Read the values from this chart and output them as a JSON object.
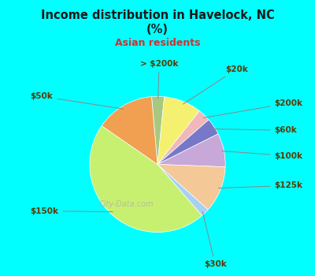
{
  "title_line1": "Income distribution in Havelock, NC",
  "title_line2": "(%)",
  "subtitle": "Asian residents",
  "background_color": "#00FFFF",
  "chart_bg_color": "#dff0e8",
  "labels": [
    "> $200k",
    "$20k",
    "$200k",
    "$60k",
    "$100k",
    "$125k",
    "$30k",
    "$150k",
    "$50k"
  ],
  "values": [
    3,
    9,
    3,
    4,
    8,
    11,
    2,
    46,
    14
  ],
  "colors": [
    "#a8c880",
    "#f5f070",
    "#f0b8b8",
    "#7878c8",
    "#c8a8d8",
    "#f5c898",
    "#a8d0f0",
    "#c8f070",
    "#f0a050"
  ],
  "label_color": "#5a3a00",
  "title_color": "#1a1a1a",
  "subtitle_color": "#cc3333",
  "watermark": "City-Data.com"
}
